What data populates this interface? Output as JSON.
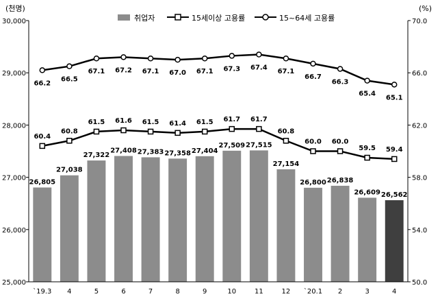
{
  "chart_data": {
    "type": "bar+line",
    "left_unit": "(천명)",
    "right_unit": "(%)",
    "categories": [
      "`19.3",
      "4",
      "5",
      "6",
      "7",
      "8",
      "9",
      "10",
      "11",
      "12",
      "`20.1",
      "2",
      "3",
      "4"
    ],
    "left_axis": {
      "min": 25000,
      "max": 30000,
      "ticks": [
        "25,000",
        "26,000",
        "27,000",
        "28,000",
        "29,000",
        "30,000"
      ],
      "tick_values": [
        25000,
        26000,
        27000,
        28000,
        29000,
        30000
      ]
    },
    "right_axis": {
      "min": 50,
      "max": 70,
      "ticks": [
        "50.0",
        "54.0",
        "58.0",
        "62.0",
        "66.0",
        "70.0"
      ],
      "tick_values": [
        50,
        54,
        58,
        62,
        66,
        70
      ]
    },
    "legend": {
      "bars": "취업자",
      "line1": "15세이상 고용률",
      "line2": "15~64세 고용률"
    },
    "bars": {
      "name": "취업자",
      "values": [
        26805,
        27038,
        27322,
        27408,
        27383,
        27358,
        27404,
        27509,
        27515,
        27154,
        26800,
        26838,
        26609,
        26562
      ],
      "labels": [
        "26,805",
        "27,038",
        "27,322",
        "27,408",
        "27,383",
        "27,358",
        "27,404",
        "27,509",
        "27,515",
        "27,154",
        "26,800",
        "26,838",
        "26,609",
        "26,562"
      ],
      "color": "#8c8c8c",
      "last_color": "#3f3f3f"
    },
    "series": [
      {
        "name": "15세이상 고용률",
        "values": [
          60.4,
          60.8,
          61.5,
          61.6,
          61.5,
          61.4,
          61.5,
          61.7,
          61.7,
          60.8,
          60.0,
          60.0,
          59.5,
          59.4
        ],
        "labels": [
          "60.4",
          "60.8",
          "61.5",
          "61.6",
          "61.5",
          "61.4",
          "61.5",
          "61.7",
          "61.7",
          "60.8",
          "60.0",
          "60.0",
          "59.5",
          "59.4"
        ],
        "marker": "square"
      },
      {
        "name": "15~64세 고용률",
        "values": [
          66.2,
          66.5,
          67.1,
          67.2,
          67.1,
          67.0,
          67.1,
          67.3,
          67.4,
          67.1,
          66.7,
          66.3,
          65.4,
          65.1
        ],
        "labels": [
          "66.2",
          "66.5",
          "67.1",
          "67.2",
          "67.1",
          "67.0",
          "67.1",
          "67.3",
          "67.4",
          "67.1",
          "66.7",
          "66.3",
          "65.4",
          "65.1"
        ],
        "marker": "circle"
      }
    ]
  }
}
